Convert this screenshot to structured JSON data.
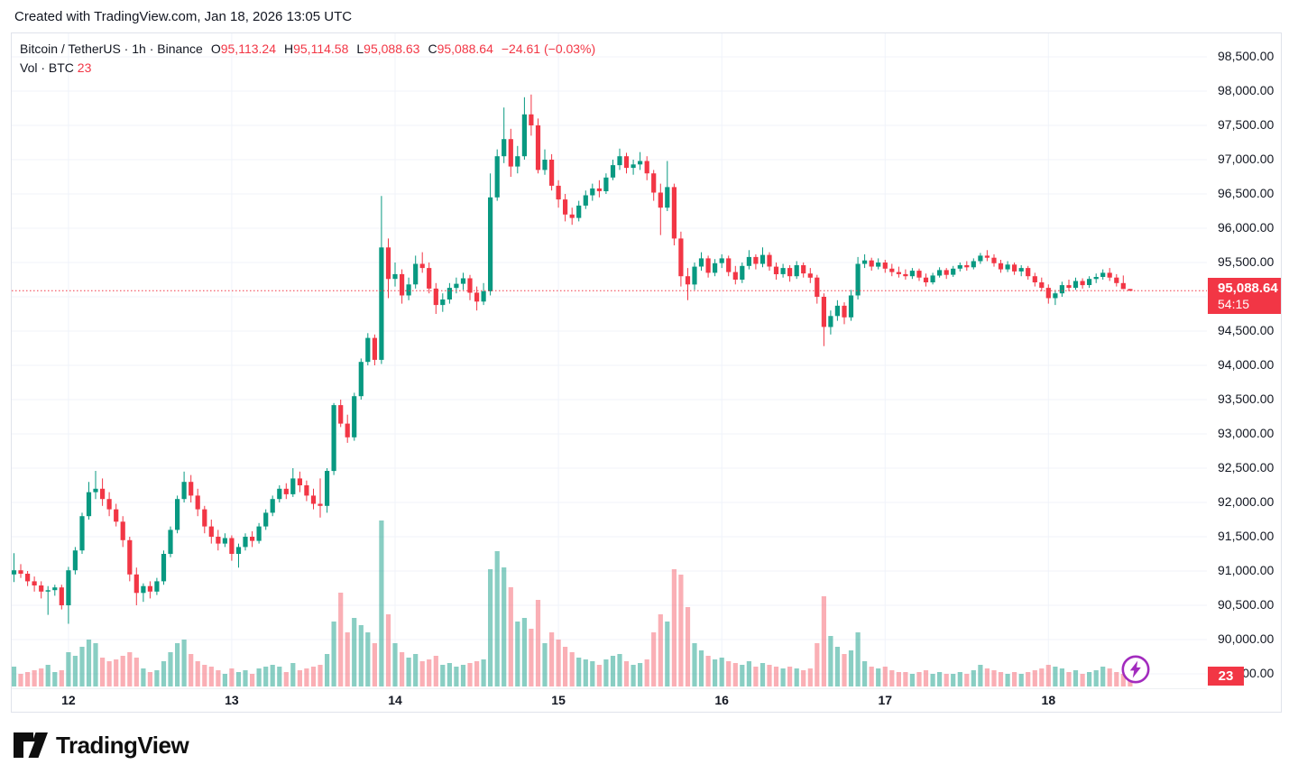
{
  "attribution": "Created with TradingView.com, Jan 18, 2026 13:05 UTC",
  "legend": {
    "title": "Bitcoin / TetherUS · 1h · Binance",
    "ohlc": [
      {
        "label": "O",
        "value": "95,113.24"
      },
      {
        "label": "H",
        "value": "95,114.58"
      },
      {
        "label": "L",
        "value": "95,088.63"
      },
      {
        "label": "C",
        "value": "95,088.64"
      }
    ],
    "change": "−24.61 (−0.03%)",
    "volume_label": "Vol · BTC",
    "volume_value": "23"
  },
  "price_scale": {
    "last_price_label": "95,088.64",
    "countdown": "54:15",
    "volume_badge": "23"
  },
  "logo": {
    "text": "TradingView"
  },
  "colors": {
    "up": "#089981",
    "down": "#F23645",
    "vol_up": "rgba(8,153,129,0.48)",
    "vol_down": "rgba(242,54,69,0.40)",
    "grid": "#f0f3fa",
    "text": "#131722",
    "frame": "#e0e3eb",
    "boost": "#A22BBE"
  },
  "chart_data": {
    "type": "candlestick",
    "title": "Bitcoin / TetherUS · 1h · Binance",
    "symbol": "Bitcoin / TetherUS",
    "interval": "1h",
    "exchange": "Binance",
    "legend_position": "top-left",
    "grid": true,
    "ylim": [
      89290,
      98842
    ],
    "price_gridlines": [
      98500,
      98000,
      97500,
      97000,
      96500,
      96000,
      95500,
      95000,
      94500,
      94000,
      93500,
      93000,
      92500,
      92000,
      91500,
      91000,
      90500,
      90000,
      89500
    ],
    "x_day_ticks": [
      {
        "label": "12",
        "index": 8
      },
      {
        "label": "13",
        "index": 32
      },
      {
        "label": "14",
        "index": 56
      },
      {
        "label": "15",
        "index": 80
      },
      {
        "label": "16",
        "index": 104
      },
      {
        "label": "17",
        "index": 128
      },
      {
        "label": "18",
        "index": 152
      }
    ],
    "current": {
      "open": 95113.24,
      "high": 95114.58,
      "low": 95088.63,
      "close": 95088.64,
      "change": -24.61,
      "change_pct": -0.03,
      "volume": 23,
      "countdown": "54:15"
    },
    "candles": [
      [
        90950,
        91260,
        90840,
        91010,
        55
      ],
      [
        91010,
        91100,
        90900,
        90960,
        35
      ],
      [
        90960,
        91000,
        90780,
        90850,
        40
      ],
      [
        90850,
        90920,
        90700,
        90790,
        45
      ],
      [
        90790,
        90850,
        90600,
        90700,
        50
      ],
      [
        90700,
        90780,
        90360,
        90720,
        60
      ],
      [
        90720,
        90800,
        90640,
        90760,
        40
      ],
      [
        90760,
        90800,
        90440,
        90500,
        45
      ],
      [
        90500,
        91060,
        90230,
        91010,
        95
      ],
      [
        91010,
        91350,
        90950,
        91300,
        85
      ],
      [
        91300,
        91850,
        91250,
        91800,
        110
      ],
      [
        91800,
        92300,
        91750,
        92150,
        130
      ],
      [
        92150,
        92460,
        92050,
        92200,
        120
      ],
      [
        92200,
        92350,
        91950,
        92050,
        80
      ],
      [
        92050,
        92150,
        91800,
        91900,
        70
      ],
      [
        91900,
        91980,
        91650,
        91720,
        75
      ],
      [
        91720,
        91800,
        91350,
        91450,
        85
      ],
      [
        91450,
        91500,
        90850,
        90950,
        95
      ],
      [
        90950,
        91050,
        90500,
        90680,
        80
      ],
      [
        90680,
        90820,
        90550,
        90780,
        50
      ],
      [
        90780,
        90850,
        90600,
        90700,
        40
      ],
      [
        90700,
        90900,
        90650,
        90850,
        45
      ],
      [
        90850,
        91300,
        90800,
        91250,
        70
      ],
      [
        91250,
        91650,
        91200,
        91600,
        95
      ],
      [
        91600,
        92100,
        91550,
        92050,
        120
      ],
      [
        92050,
        92450,
        92000,
        92300,
        130
      ],
      [
        92300,
        92400,
        92000,
        92100,
        90
      ],
      [
        92100,
        92200,
        91800,
        91900,
        70
      ],
      [
        91900,
        91950,
        91550,
        91650,
        60
      ],
      [
        91650,
        91750,
        91400,
        91500,
        55
      ],
      [
        91500,
        91600,
        91300,
        91400,
        45
      ],
      [
        91400,
        91550,
        91350,
        91480,
        35
      ],
      [
        91480,
        91520,
        91150,
        91250,
        50
      ],
      [
        91250,
        91400,
        91050,
        91350,
        40
      ],
      [
        91350,
        91550,
        91300,
        91500,
        45
      ],
      [
        91500,
        91580,
        91350,
        91440,
        35
      ],
      [
        91440,
        91700,
        91400,
        91650,
        50
      ],
      [
        91650,
        91900,
        91600,
        91850,
        55
      ],
      [
        91850,
        92100,
        91800,
        92050,
        60
      ],
      [
        92050,
        92250,
        92000,
        92200,
        55
      ],
      [
        92200,
        92280,
        92050,
        92120,
        40
      ],
      [
        92120,
        92500,
        92080,
        92350,
        65
      ],
      [
        92350,
        92450,
        92150,
        92250,
        45
      ],
      [
        92250,
        92320,
        92020,
        92100,
        50
      ],
      [
        92100,
        92200,
        91900,
        91980,
        55
      ],
      [
        91980,
        92350,
        91780,
        91950,
        60
      ],
      [
        91950,
        92500,
        91850,
        92460,
        90
      ],
      [
        92460,
        93450,
        92400,
        93420,
        180
      ],
      [
        93420,
        93500,
        93100,
        93150,
        260
      ],
      [
        93150,
        93280,
        92870,
        92950,
        150
      ],
      [
        92950,
        93600,
        92900,
        93550,
        190
      ],
      [
        93550,
        94100,
        93500,
        94050,
        170
      ],
      [
        94050,
        94470,
        94000,
        94400,
        150
      ],
      [
        94400,
        94450,
        94000,
        94080,
        120
      ],
      [
        94080,
        96470,
        94020,
        95720,
        460
      ],
      [
        95720,
        95850,
        94980,
        95260,
        200
      ],
      [
        95260,
        95500,
        95150,
        95330,
        120
      ],
      [
        95330,
        95400,
        94900,
        95020,
        95
      ],
      [
        95020,
        95280,
        94950,
        95180,
        80
      ],
      [
        95180,
        95600,
        95120,
        95480,
        90
      ],
      [
        95480,
        95650,
        95350,
        95420,
        70
      ],
      [
        95420,
        95500,
        95050,
        95120,
        75
      ],
      [
        95120,
        95200,
        94750,
        94880,
        85
      ],
      [
        94880,
        95050,
        94780,
        94960,
        60
      ],
      [
        94960,
        95200,
        94900,
        95130,
        65
      ],
      [
        95130,
        95280,
        95050,
        95190,
        55
      ],
      [
        95190,
        95350,
        95100,
        95270,
        60
      ],
      [
        95270,
        95320,
        94950,
        95060,
        65
      ],
      [
        95060,
        95150,
        94800,
        94930,
        70
      ],
      [
        94930,
        95200,
        94880,
        95080,
        75
      ],
      [
        95080,
        96800,
        95020,
        96450,
        325
      ],
      [
        96450,
        97150,
        96400,
        97050,
        375
      ],
      [
        97050,
        97760,
        96950,
        97300,
        330
      ],
      [
        97300,
        97450,
        96750,
        96900,
        275
      ],
      [
        96900,
        97200,
        96800,
        97050,
        180
      ],
      [
        97050,
        97910,
        97000,
        97660,
        190
      ],
      [
        97660,
        97950,
        97350,
        97500,
        160
      ],
      [
        97500,
        97600,
        96800,
        96850,
        240
      ],
      [
        96850,
        97150,
        96780,
        97000,
        120
      ],
      [
        97000,
        97080,
        96550,
        96620,
        150
      ],
      [
        96620,
        96700,
        96300,
        96420,
        130
      ],
      [
        96420,
        96500,
        96100,
        96200,
        110
      ],
      [
        96200,
        96300,
        96050,
        96150,
        95
      ],
      [
        96150,
        96400,
        96100,
        96330,
        80
      ],
      [
        96330,
        96550,
        96280,
        96480,
        75
      ],
      [
        96480,
        96650,
        96400,
        96580,
        70
      ],
      [
        96580,
        96700,
        96450,
        96540,
        60
      ],
      [
        96540,
        96800,
        96500,
        96740,
        75
      ],
      [
        96740,
        97000,
        96700,
        96920,
        85
      ],
      [
        96920,
        97160,
        96850,
        97050,
        90
      ],
      [
        97050,
        97100,
        96800,
        96880,
        70
      ],
      [
        96880,
        97000,
        96780,
        96930,
        60
      ],
      [
        96930,
        97110,
        96850,
        96980,
        65
      ],
      [
        96980,
        97050,
        96700,
        96800,
        75
      ],
      [
        96800,
        96850,
        96400,
        96520,
        150
      ],
      [
        96520,
        96650,
        95900,
        96300,
        200
      ],
      [
        96300,
        96980,
        96250,
        96600,
        180
      ],
      [
        96600,
        96650,
        95750,
        95850,
        325
      ],
      [
        95850,
        95950,
        95150,
        95300,
        310
      ],
      [
        95300,
        95420,
        94950,
        95180,
        220
      ],
      [
        95180,
        95500,
        95100,
        95440,
        120
      ],
      [
        95440,
        95650,
        95380,
        95560,
        100
      ],
      [
        95560,
        95600,
        95280,
        95350,
        85
      ],
      [
        95350,
        95550,
        95300,
        95490,
        75
      ],
      [
        95490,
        95620,
        95420,
        95560,
        80
      ],
      [
        95560,
        95600,
        95300,
        95360,
        70
      ],
      [
        95360,
        95450,
        95180,
        95250,
        65
      ],
      [
        95250,
        95500,
        95200,
        95450,
        60
      ],
      [
        95450,
        95680,
        95400,
        95580,
        70
      ],
      [
        95580,
        95620,
        95400,
        95480,
        55
      ],
      [
        95480,
        95720,
        95430,
        95610,
        65
      ],
      [
        95610,
        95650,
        95380,
        95440,
        60
      ],
      [
        95440,
        95500,
        95250,
        95330,
        55
      ],
      [
        95330,
        95480,
        95280,
        95420,
        50
      ],
      [
        95420,
        95460,
        95220,
        95300,
        55
      ],
      [
        95300,
        95520,
        95260,
        95460,
        50
      ],
      [
        95460,
        95500,
        95280,
        95340,
        45
      ],
      [
        95340,
        95420,
        95200,
        95280,
        50
      ],
      [
        95280,
        95320,
        94900,
        95000,
        120
      ],
      [
        95000,
        95050,
        94280,
        94560,
        250
      ],
      [
        94560,
        94800,
        94450,
        94720,
        140
      ],
      [
        94720,
        94950,
        94650,
        94870,
        110
      ],
      [
        94870,
        94920,
        94600,
        94700,
        90
      ],
      [
        94700,
        95100,
        94650,
        95020,
        100
      ],
      [
        95020,
        95580,
        94960,
        95480,
        150
      ],
      [
        95480,
        95620,
        95420,
        95530,
        70
      ],
      [
        95530,
        95570,
        95380,
        95440,
        55
      ],
      [
        95440,
        95560,
        95400,
        95500,
        50
      ],
      [
        95500,
        95540,
        95350,
        95410,
        55
      ],
      [
        95410,
        95480,
        95300,
        95360,
        45
      ],
      [
        95360,
        95440,
        95280,
        95330,
        40
      ],
      [
        95330,
        95400,
        95250,
        95300,
        40
      ],
      [
        95300,
        95420,
        95260,
        95380,
        35
      ],
      [
        95380,
        95410,
        95230,
        95280,
        40
      ],
      [
        95280,
        95340,
        95150,
        95210,
        45
      ],
      [
        95210,
        95350,
        95180,
        95310,
        35
      ],
      [
        95310,
        95430,
        95280,
        95390,
        40
      ],
      [
        95390,
        95420,
        95260,
        95320,
        35
      ],
      [
        95320,
        95450,
        95290,
        95410,
        35
      ],
      [
        95410,
        95500,
        95370,
        95460,
        40
      ],
      [
        95460,
        95520,
        95380,
        95430,
        35
      ],
      [
        95430,
        95560,
        95400,
        95520,
        45
      ],
      [
        95520,
        95640,
        95480,
        95600,
        60
      ],
      [
        95600,
        95680,
        95520,
        95570,
        50
      ],
      [
        95570,
        95620,
        95440,
        95490,
        45
      ],
      [
        95490,
        95540,
        95350,
        95400,
        40
      ],
      [
        95400,
        95520,
        95360,
        95470,
        35
      ],
      [
        95470,
        95500,
        95320,
        95370,
        40
      ],
      [
        95370,
        95460,
        95300,
        95420,
        35
      ],
      [
        95420,
        95450,
        95250,
        95300,
        40
      ],
      [
        95300,
        95350,
        95150,
        95210,
        45
      ],
      [
        95210,
        95280,
        95080,
        95130,
        50
      ],
      [
        95130,
        95180,
        94900,
        94980,
        60
      ],
      [
        94980,
        95100,
        94880,
        95050,
        55
      ],
      [
        95050,
        95220,
        95000,
        95170,
        50
      ],
      [
        95170,
        95250,
        95080,
        95130,
        40
      ],
      [
        95130,
        95280,
        95100,
        95230,
        45
      ],
      [
        95230,
        95270,
        95120,
        95170,
        35
      ],
      [
        95170,
        95300,
        95130,
        95260,
        40
      ],
      [
        95260,
        95340,
        95200,
        95290,
        45
      ],
      [
        95290,
        95400,
        95250,
        95350,
        55
      ],
      [
        95350,
        95420,
        95230,
        95280,
        50
      ],
      [
        95280,
        95330,
        95150,
        95200,
        40
      ],
      [
        95200,
        95310,
        95110,
        95113.24,
        35
      ],
      [
        95113.24,
        95114.58,
        95088.63,
        95088.64,
        23
      ]
    ]
  }
}
